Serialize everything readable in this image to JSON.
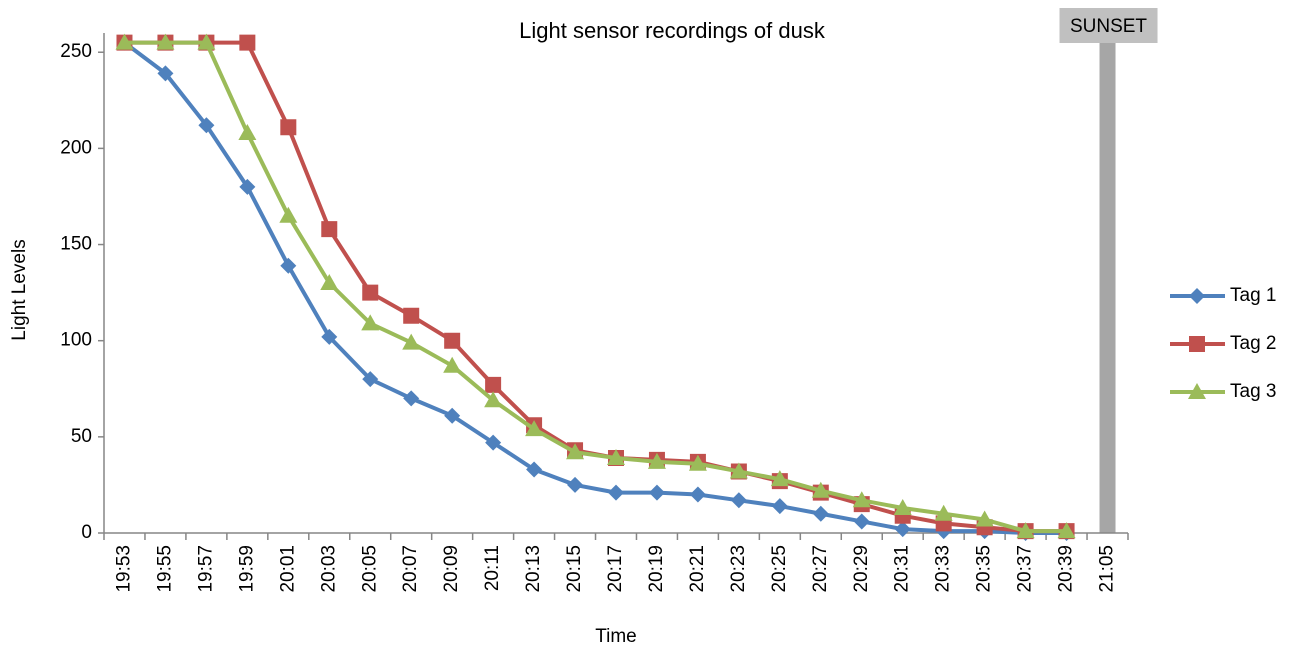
{
  "chart_data": {
    "type": "line",
    "title": "Light sensor recordings of dusk",
    "x_label": "Time",
    "y_label": "Light Levels",
    "categories": [
      "19:53",
      "19:55",
      "19:57",
      "19:59",
      "20:01",
      "20:03",
      "20:05",
      "20:07",
      "20:09",
      "20:11",
      "20:13",
      "20:15",
      "20:17",
      "20:19",
      "20:21",
      "20:23",
      "20:25",
      "20:27",
      "20:29",
      "20:31",
      "20:33",
      "20:35",
      "20:37",
      "20:39",
      "21:05"
    ],
    "series": [
      {
        "name": "Tag 1",
        "color": "#4f81bd",
        "marker": "diamond",
        "values": [
          255,
          239,
          212,
          180,
          139,
          102,
          80,
          70,
          61,
          47,
          33,
          25,
          21,
          21,
          20,
          17,
          14,
          10,
          6,
          2,
          1,
          1,
          0,
          0,
          null
        ]
      },
      {
        "name": "Tag 2",
        "color": "#c0504d",
        "marker": "square",
        "values": [
          255,
          255,
          255,
          255,
          211,
          158,
          125,
          113,
          100,
          77,
          56,
          43,
          39,
          38,
          37,
          32,
          27,
          21,
          15,
          9,
          5,
          3,
          1,
          1,
          null
        ]
      },
      {
        "name": "Tag 3",
        "color": "#9bbb59",
        "marker": "triangle",
        "values": [
          255,
          255,
          255,
          208,
          165,
          130,
          109,
          99,
          87,
          69,
          54,
          42,
          39,
          37,
          36,
          32,
          28,
          22,
          17,
          13,
          10,
          7,
          1,
          1,
          null
        ]
      }
    ],
    "annotation": {
      "label": "SUNSET",
      "category": "21:05",
      "color": "#a6a6a6"
    },
    "ylim": [
      0,
      260
    ],
    "yticks": [
      0,
      50,
      100,
      150,
      200,
      250
    ],
    "grid": false,
    "legend": "right"
  }
}
